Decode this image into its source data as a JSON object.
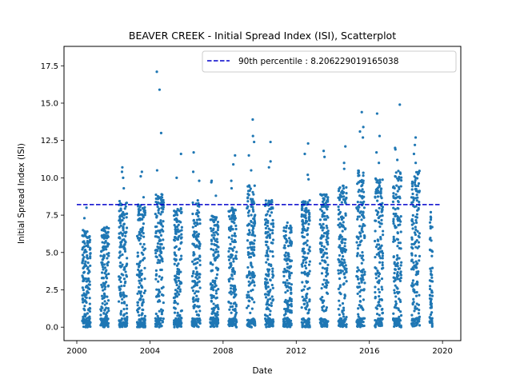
{
  "chart_data": {
    "type": "scatter",
    "title": "BEAVER CREEK - Initial Spread Index (ISI), Scatterplot",
    "xlabel": "Date",
    "ylabel": "Initial Spread Index (ISI)",
    "xlim": [
      1999.3,
      2021.0
    ],
    "ylim": [
      -0.9,
      18.8
    ],
    "x_ticks": [
      2000,
      2004,
      2008,
      2012,
      2016,
      2020
    ],
    "x_tick_labels": [
      "2000",
      "2004",
      "2008",
      "2012",
      "2016",
      "2020"
    ],
    "y_ticks": [
      0.0,
      2.5,
      5.0,
      7.5,
      10.0,
      12.5,
      15.0,
      17.5
    ],
    "y_tick_labels": [
      "0.0",
      "2.5",
      "5.0",
      "7.5",
      "10.0",
      "12.5",
      "15.0",
      "17.5"
    ],
    "grid": false,
    "legend_position": "top-right",
    "threshold": {
      "label": "90th percentile : 8.206229019165038",
      "value": 8.206229019165038,
      "x_range": [
        2000.0,
        2019.9
      ],
      "color": "#0000cc",
      "style": "dashed"
    },
    "point_color": "#1f77b4",
    "seasons": [
      {
        "year": 2000,
        "start": 2000.3,
        "end": 2000.75,
        "typical_max": 6.5,
        "extremes": [
          8.0,
          7.3
        ]
      },
      {
        "year": 2001,
        "start": 2001.3,
        "end": 2001.75,
        "typical_max": 6.8,
        "extremes": [
          6.7
        ]
      },
      {
        "year": 2002,
        "start": 2002.3,
        "end": 2002.75,
        "typical_max": 8.5,
        "extremes": [
          10.7,
          10.4,
          10.0,
          9.3
        ]
      },
      {
        "year": 2003,
        "start": 2003.3,
        "end": 2003.75,
        "typical_max": 8.2,
        "extremes": [
          10.4,
          10.1,
          8.7
        ]
      },
      {
        "year": 2004,
        "start": 2004.3,
        "end": 2004.75,
        "typical_max": 9.0,
        "extremes": [
          17.1,
          15.9,
          13.0,
          10.5,
          8.9
        ]
      },
      {
        "year": 2005,
        "start": 2005.3,
        "end": 2005.75,
        "typical_max": 8.0,
        "extremes": [
          11.6,
          10.0
        ]
      },
      {
        "year": 2006,
        "start": 2006.3,
        "end": 2006.75,
        "typical_max": 8.5,
        "extremes": [
          11.7,
          10.4,
          9.8
        ]
      },
      {
        "year": 2007,
        "start": 2007.3,
        "end": 2007.75,
        "typical_max": 7.5,
        "extremes": [
          9.8,
          9.7,
          8.8
        ]
      },
      {
        "year": 2008,
        "start": 2008.3,
        "end": 2008.75,
        "typical_max": 8.0,
        "extremes": [
          11.5,
          10.9,
          9.8,
          9.3
        ]
      },
      {
        "year": 2009,
        "start": 2009.3,
        "end": 2009.75,
        "typical_max": 9.5,
        "extremes": [
          13.9,
          12.8,
          12.4,
          11.5,
          10.5
        ]
      },
      {
        "year": 2010,
        "start": 2010.3,
        "end": 2010.75,
        "typical_max": 8.5,
        "extremes": [
          12.4,
          11.1,
          10.7
        ]
      },
      {
        "year": 2011,
        "start": 2011.3,
        "end": 2011.75,
        "typical_max": 6.8,
        "extremes": [
          7.0
        ]
      },
      {
        "year": 2012,
        "start": 2012.3,
        "end": 2012.75,
        "typical_max": 8.5,
        "extremes": [
          12.3,
          11.6,
          10.2,
          9.9
        ]
      },
      {
        "year": 2013,
        "start": 2013.3,
        "end": 2013.75,
        "typical_max": 9.0,
        "extremes": [
          11.8,
          11.4
        ]
      },
      {
        "year": 2014,
        "start": 2014.3,
        "end": 2014.75,
        "typical_max": 9.5,
        "extremes": [
          12.1,
          11.0,
          10.6
        ]
      },
      {
        "year": 2015,
        "start": 2015.3,
        "end": 2015.75,
        "typical_max": 10.5,
        "extremes": [
          14.4,
          13.4,
          13.1,
          12.7
        ]
      },
      {
        "year": 2016,
        "start": 2016.3,
        "end": 2016.75,
        "typical_max": 10.0,
        "extremes": [
          14.3,
          12.8,
          11.7,
          11.0
        ]
      },
      {
        "year": 2017,
        "start": 2017.3,
        "end": 2017.75,
        "typical_max": 10.5,
        "extremes": [
          14.9,
          12.0,
          11.9,
          11.2
        ]
      },
      {
        "year": 2018,
        "start": 2018.3,
        "end": 2018.75,
        "typical_max": 10.5,
        "extremes": [
          12.7,
          12.2,
          11.6,
          11.0
        ]
      },
      {
        "year": 2019,
        "start": 2019.3,
        "end": 2019.45,
        "typical_max": 7.8,
        "extremes": [
          7.7,
          7.2
        ]
      }
    ]
  }
}
